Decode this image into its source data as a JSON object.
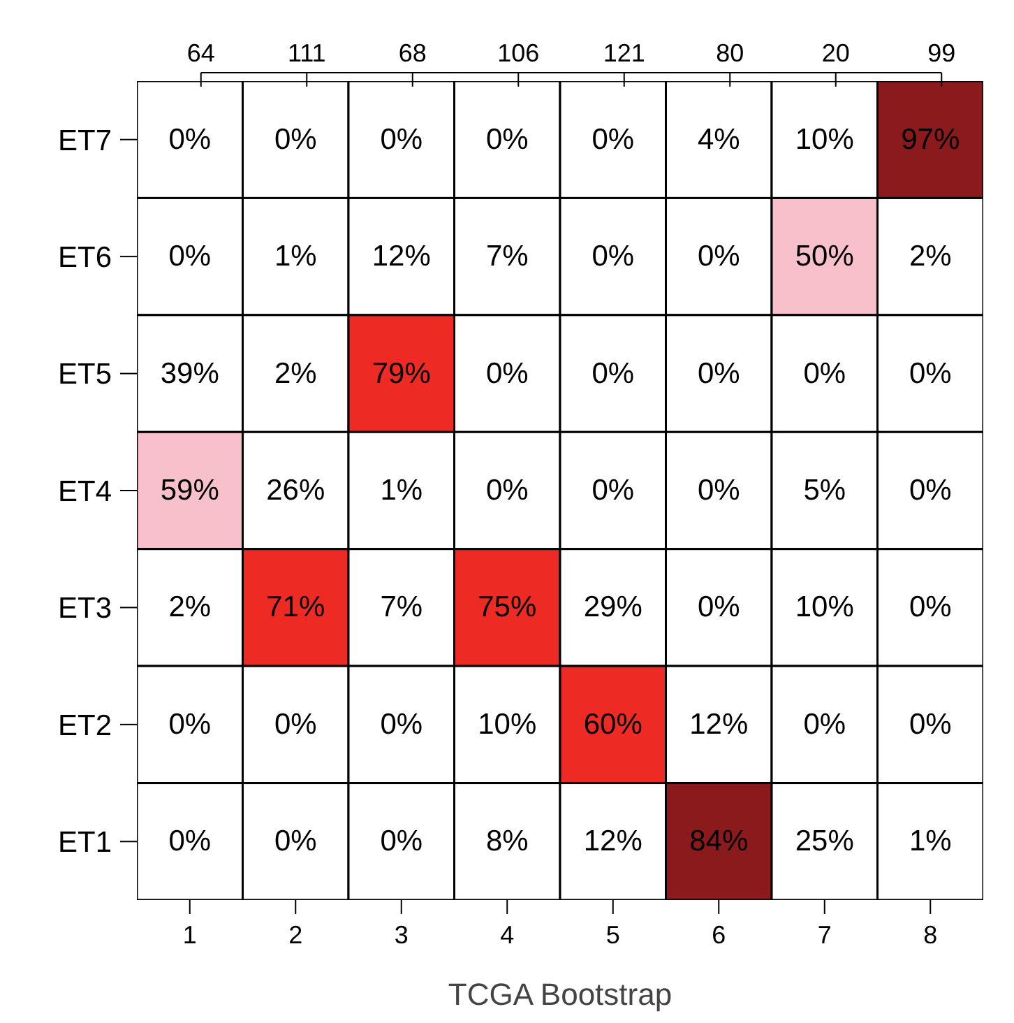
{
  "chart_data": {
    "type": "heatmap",
    "xlabel": "TCGA Bootstrap",
    "categories": [
      "1",
      "2",
      "3",
      "4",
      "5",
      "6",
      "7",
      "8"
    ],
    "y_categories": [
      "ET7",
      "ET6",
      "ET5",
      "ET4",
      "ET3",
      "ET2",
      "ET1"
    ],
    "annotations": [
      "64",
      "111",
      "68",
      "106",
      "121",
      "80",
      "20",
      "99"
    ],
    "cells": [
      [
        0,
        0,
        0,
        0,
        0,
        4,
        10,
        97
      ],
      [
        0,
        1,
        12,
        7,
        0,
        0,
        50,
        2
      ],
      [
        39,
        2,
        79,
        0,
        0,
        0,
        0,
        0
      ],
      [
        59,
        26,
        1,
        0,
        0,
        0,
        5,
        0
      ],
      [
        2,
        71,
        7,
        75,
        29,
        0,
        10,
        0
      ],
      [
        0,
        0,
        0,
        10,
        60,
        12,
        0,
        0
      ],
      [
        0,
        0,
        0,
        8,
        12,
        84,
        25,
        1
      ]
    ],
    "cell_labels": [
      [
        "0%",
        "0%",
        "0%",
        "0%",
        "0%",
        "4%",
        "10%",
        "97%"
      ],
      [
        "0%",
        "1%",
        "12%",
        "7%",
        "0%",
        "0%",
        "50%",
        "2%"
      ],
      [
        "39%",
        "2%",
        "79%",
        "0%",
        "0%",
        "0%",
        "0%",
        "0%"
      ],
      [
        "59%",
        "26%",
        "1%",
        "0%",
        "0%",
        "0%",
        "5%",
        "0%"
      ],
      [
        "2%",
        "71%",
        "7%",
        "75%",
        "29%",
        "0%",
        "10%",
        "0%"
      ],
      [
        "0%",
        "0%",
        "0%",
        "10%",
        "60%",
        "12%",
        "0%",
        "0%"
      ],
      [
        "0%",
        "0%",
        "0%",
        "8%",
        "12%",
        "84%",
        "25%",
        "1%"
      ]
    ]
  }
}
